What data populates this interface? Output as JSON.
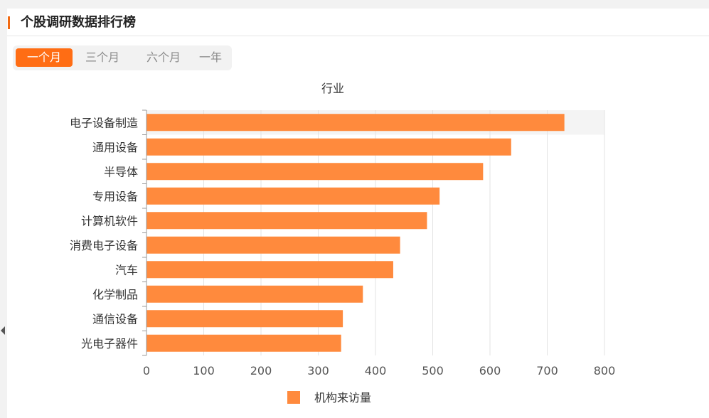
{
  "header": {
    "title": "个股调研数据排行榜"
  },
  "tabs": [
    {
      "label": "一个月",
      "active": true
    },
    {
      "label": "三个月",
      "active": false
    },
    {
      "label": "六个月",
      "active": false
    },
    {
      "label": "一年",
      "active": false
    }
  ],
  "colors": {
    "accent": "#ff6d14",
    "bar": "#ff8a3d"
  },
  "chart_data": {
    "type": "bar",
    "orientation": "horizontal",
    "title": "行业",
    "categories": [
      "电子设备制造",
      "通用设备",
      "半导体",
      "专用设备",
      "计算机软件",
      "消费电子设备",
      "汽车",
      "化学制品",
      "通信设备",
      "光电子器件"
    ],
    "series": [
      {
        "name": "机构来访量",
        "values": [
          730,
          637,
          588,
          512,
          490,
          443,
          431,
          378,
          343,
          340
        ]
      }
    ],
    "xlim": [
      0,
      800
    ],
    "xticks": [
      "0",
      "100",
      "200",
      "300",
      "400",
      "500",
      "600",
      "700",
      "800"
    ],
    "grid": true,
    "legend_position": "bottom",
    "highlighted_category": "电子设备制造"
  }
}
